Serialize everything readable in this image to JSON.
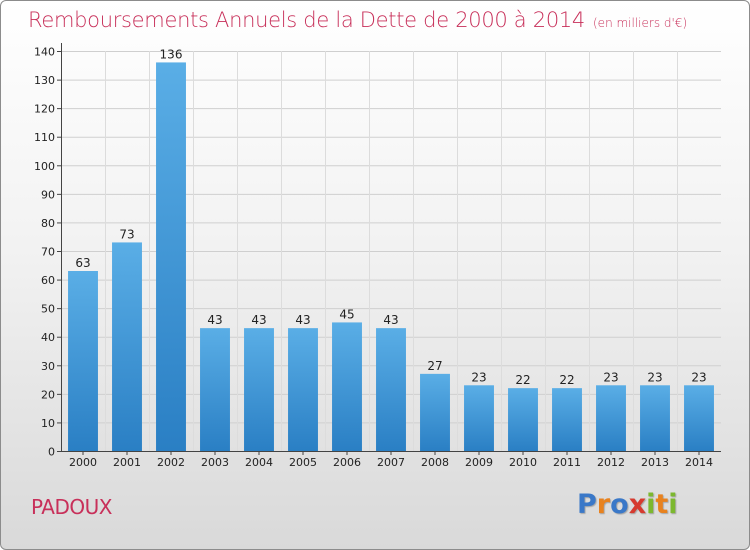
{
  "chart_data": {
    "type": "bar",
    "title": "Remboursements Annuels de la Dette de 2000 à 2014",
    "subtitle": "(en milliers d'€)",
    "categories": [
      "2000",
      "2001",
      "2002",
      "2003",
      "2004",
      "2005",
      "2006",
      "2007",
      "2008",
      "2009",
      "2010",
      "2011",
      "2012",
      "2013",
      "2014"
    ],
    "values": [
      63,
      73,
      136,
      43,
      43,
      43,
      45,
      43,
      27,
      23,
      22,
      22,
      23,
      23,
      23
    ],
    "ylim": [
      0,
      140
    ],
    "yticks": [
      0,
      10,
      20,
      30,
      40,
      50,
      60,
      70,
      80,
      90,
      100,
      110,
      120,
      130,
      140
    ],
    "grid": true,
    "bar_color_top": "#5aaee6",
    "bar_color_bottom": "#2a7fc4"
  },
  "footer": {
    "place": "PADOUX",
    "brand_letters": [
      "P",
      "r",
      "o",
      "x",
      "i",
      "t",
      "i"
    ],
    "brand_colors": [
      "#3a78c8",
      "#e8821e",
      "#3a78c8",
      "#d63a2f",
      "#7cb82f",
      "#e8821e",
      "#7cb82f"
    ]
  }
}
